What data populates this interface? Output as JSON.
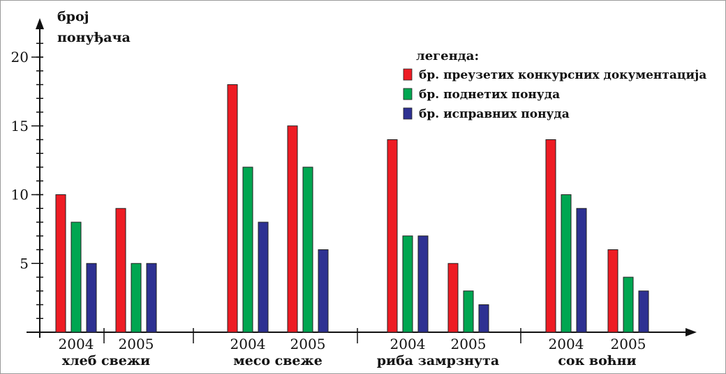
{
  "chart_data": {
    "type": "bar",
    "ylabel_line1": "број",
    "ylabel_line2": "понуђача",
    "ylim": [
      0,
      20
    ],
    "yticks": [
      "5",
      "10",
      "15",
      "20"
    ],
    "yticks_values": [
      5,
      10,
      15,
      20
    ],
    "legend_title": "легенда:",
    "legend_position": "top-right",
    "grid": false,
    "series": [
      {
        "name": "бр. преузетих конкурсних документација",
        "color": "#ee1c24"
      },
      {
        "name": "бр. поднетих понуда",
        "color": "#00a651"
      },
      {
        "name": "бр. исправних понуда",
        "color": "#2e3192"
      }
    ],
    "groups": [
      {
        "label": "хлеб свежи",
        "years": [
          {
            "year": "2004",
            "values": [
              10,
              8,
              5
            ]
          },
          {
            "year": "2005",
            "values": [
              9,
              5,
              5
            ]
          }
        ]
      },
      {
        "label": "месо свеже",
        "years": [
          {
            "year": "2004",
            "values": [
              18,
              12,
              8
            ]
          },
          {
            "year": "2005",
            "values": [
              15,
              12,
              6
            ]
          }
        ]
      },
      {
        "label": "риба замрзнута",
        "years": [
          {
            "year": "2004",
            "values": [
              14,
              7,
              7
            ]
          },
          {
            "year": "2005",
            "values": [
              5,
              3,
              2
            ]
          }
        ]
      },
      {
        "label": "сок воћни",
        "years": [
          {
            "year": "2004",
            "values": [
              14,
              10,
              9
            ]
          },
          {
            "year": "2005",
            "values": [
              6,
              4,
              3
            ]
          }
        ]
      }
    ]
  }
}
